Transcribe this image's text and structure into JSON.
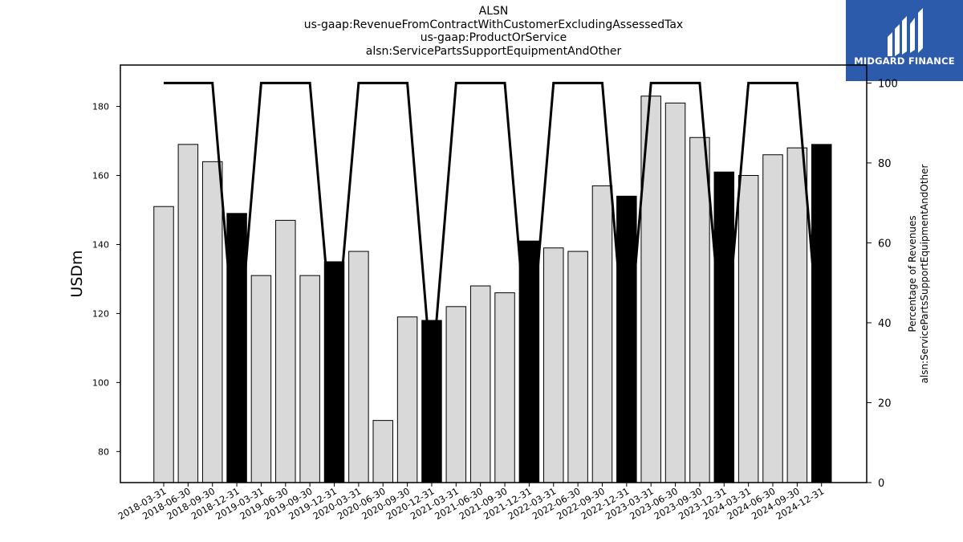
{
  "title_lines": [
    "ALSN",
    "us-gaap:RevenueFromContractWithCustomerExcludingAssessedTax",
    "us-gaap:ProductOrService",
    "alsn:ServicePartsSupportEquipmentAndOther"
  ],
  "logo": {
    "text": "MIDGARD FINANCE",
    "background": "#2d5bab"
  },
  "chart_data": {
    "type": "bar",
    "ylabel": "USDm",
    "y2label_lines": [
      "Percentage of Revenues",
      "alsn:ServicePartsSupportEquipmentAndOther"
    ],
    "ylim": [
      71,
      192
    ],
    "y2lim": [
      0,
      104.5
    ],
    "y_ticks": [
      80,
      100,
      120,
      140,
      160,
      180
    ],
    "y2_ticks": [
      0,
      20,
      40,
      60,
      80,
      100
    ],
    "categories": [
      "2018-03-31",
      "2018-06-30",
      "2018-09-30",
      "2018-12-31",
      "2019-03-31",
      "2019-06-30",
      "2019-09-30",
      "2019-12-31",
      "2020-03-31",
      "2020-06-30",
      "2020-09-30",
      "2020-12-31",
      "2021-03-31",
      "2021-06-30",
      "2021-09-30",
      "2021-12-31",
      "2022-03-31",
      "2022-06-30",
      "2022-09-30",
      "2022-12-31",
      "2023-03-31",
      "2023-06-30",
      "2023-09-30",
      "2023-12-31",
      "2024-03-31",
      "2024-06-30",
      "2024-09-30",
      "2024-12-31"
    ],
    "values": [
      151,
      169,
      164,
      149,
      131,
      147,
      131,
      135,
      138,
      89,
      119,
      118,
      122,
      128,
      126,
      141,
      139,
      138,
      157,
      154,
      183,
      181,
      171,
      161,
      160,
      166,
      168,
      169
    ],
    "annual_flags": [
      false,
      false,
      false,
      true,
      false,
      false,
      false,
      true,
      false,
      false,
      false,
      true,
      false,
      false,
      false,
      true,
      false,
      false,
      false,
      true,
      false,
      false,
      false,
      true,
      false,
      false,
      false,
      true
    ],
    "percentage": [
      100,
      100,
      100,
      28,
      100,
      100,
      100,
      30,
      100,
      100,
      100,
      26,
      100,
      100,
      100,
      28,
      100,
      100,
      100,
      28,
      100,
      100,
      100,
      30,
      100,
      100,
      100,
      28
    ],
    "colors": {
      "quarter_bar": "#d9d9d9",
      "annual_bar": "#000000",
      "line": "#000000"
    },
    "grid": false,
    "legend": "none"
  }
}
